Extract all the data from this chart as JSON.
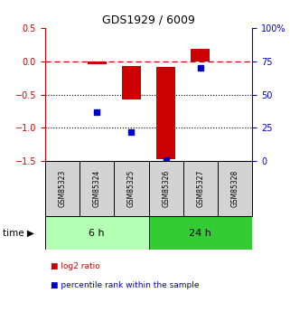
{
  "title": "GDS1929 / 6009",
  "samples": [
    "GSM85323",
    "GSM85324",
    "GSM85325",
    "GSM85326",
    "GSM85327",
    "GSM85328"
  ],
  "log2_ratio_top": [
    0.0,
    -0.05,
    -0.07,
    -0.08,
    0.19,
    0.0
  ],
  "log2_ratio_bot": [
    0.0,
    0.0,
    -0.58,
    -1.47,
    0.0,
    0.0
  ],
  "percentile": [
    null,
    37.0,
    22.0,
    1.0,
    70.0,
    null
  ],
  "ylim_left": [
    -1.5,
    0.5
  ],
  "ylim_right": [
    0,
    100
  ],
  "yticks_left": [
    -1.5,
    -1.0,
    -0.5,
    0.0,
    0.5
  ],
  "yticks_right": [
    0,
    25,
    50,
    75,
    100
  ],
  "ytick_labels_right": [
    "0",
    "25",
    "50",
    "75",
    "100%"
  ],
  "hline_y": 0.0,
  "hlines_dotted": [
    -0.5,
    -1.0
  ],
  "group1_label": "6 h",
  "group2_label": "24 h",
  "group1_indices": [
    0,
    1,
    2
  ],
  "group2_indices": [
    3,
    4,
    5
  ],
  "bar_color": "#cc0000",
  "dot_color": "#0000cc",
  "group1_color_light": "#b3ffb3",
  "group2_color_dark": "#33cc33",
  "bg_color": "#ffffff",
  "axis_label_red": "log2 ratio",
  "axis_label_blue": "percentile rank within the sample",
  "time_label": "time"
}
